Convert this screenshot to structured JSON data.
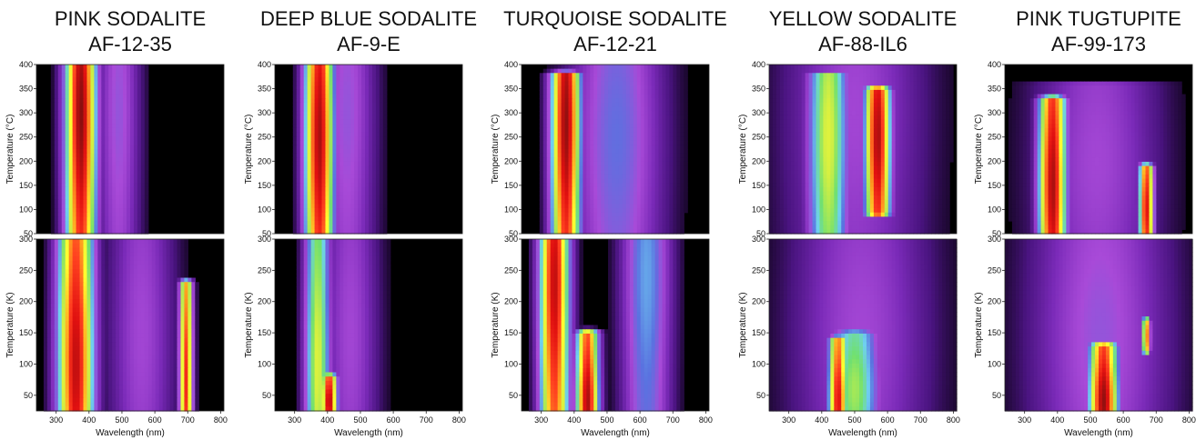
{
  "colors": {
    "background": "#000000",
    "colormap": [
      "#000000",
      "#4a1480",
      "#7a2ab8",
      "#a84ad8",
      "#5a72e0",
      "#6fd0f0",
      "#70e070",
      "#d8f040",
      "#ffff30",
      "#ffa020",
      "#ff4020",
      "#e01010",
      "#901010",
      "#3a0404"
    ]
  },
  "chart_data": [
    {
      "type": "heatmap",
      "title_line1": "PINK SODALITE",
      "title_line2": "AF-12-35",
      "xlabel": "Wavelength (nm)",
      "xticks": [
        "300",
        "400",
        "500",
        "600",
        "700",
        "800"
      ],
      "xlim": [
        240,
        810
      ],
      "top": {
        "ylabel": "Temperature (°C)",
        "ylim": [
          50,
          400
        ],
        "yticks": [
          "50",
          "100",
          "150",
          "200",
          "250",
          "300",
          "350",
          "400"
        ],
        "bands": [
          {
            "center_nm": 375,
            "width_nm": 95,
            "peak": 0.93,
            "t_from": 50,
            "t_to": 400,
            "t_peak": 300
          },
          {
            "center_nm": 490,
            "width_nm": 130,
            "peak": 0.25,
            "t_from": 50,
            "t_to": 400,
            "t_peak": 300
          }
        ]
      },
      "bottom": {
        "ylabel": "Temperature (K)",
        "ylim": [
          25,
          300
        ],
        "yticks": [
          "50",
          "100",
          "150",
          "200",
          "250",
          "300"
        ],
        "bands": [
          {
            "center_nm": 360,
            "width_nm": 110,
            "peak": 0.88,
            "t_from": 25,
            "t_to": 300,
            "t_peak": 100
          },
          {
            "center_nm": 695,
            "width_nm": 40,
            "peak": 0.8,
            "t_from": 25,
            "t_to": 230,
            "t_peak": 70
          },
          {
            "center_nm": 560,
            "width_nm": 200,
            "peak": 0.22,
            "t_from": 25,
            "t_to": 300,
            "t_peak": 150
          }
        ]
      }
    },
    {
      "type": "heatmap",
      "title_line1": "DEEP BLUE SODALITE",
      "title_line2": "AF-9-E",
      "xlabel": "Wavelength (nm)",
      "xticks": [
        "300",
        "400",
        "500",
        "600",
        "700",
        "800"
      ],
      "xlim": [
        240,
        810
      ],
      "top": {
        "ylabel": "Temperature (°C)",
        "ylim": [
          50,
          400
        ],
        "yticks": [
          "50",
          "100",
          "150",
          "200",
          "250",
          "300",
          "350",
          "400"
        ],
        "bands": [
          {
            "center_nm": 375,
            "width_nm": 90,
            "peak": 0.9,
            "t_from": 50,
            "t_to": 400,
            "t_peak": 250
          },
          {
            "center_nm": 460,
            "width_nm": 170,
            "peak": 0.25,
            "t_from": 50,
            "t_to": 400,
            "t_peak": 300
          }
        ]
      },
      "bottom": {
        "ylabel": "Temperature (K)",
        "ylim": [
          25,
          300
        ],
        "yticks": [
          "50",
          "100",
          "150",
          "200",
          "250",
          "300"
        ],
        "bands": [
          {
            "center_nm": 370,
            "width_nm": 80,
            "peak": 0.55,
            "t_from": 25,
            "t_to": 300,
            "t_peak": 100
          },
          {
            "center_nm": 405,
            "width_nm": 50,
            "peak": 0.9,
            "t_from": 25,
            "t_to": 80,
            "t_peak": 40
          },
          {
            "center_nm": 470,
            "width_nm": 170,
            "peak": 0.22,
            "t_from": 25,
            "t_to": 300,
            "t_peak": 150
          }
        ]
      }
    },
    {
      "type": "heatmap",
      "title_line1": "TURQUOISE SODALITE",
      "title_line2": "AF-12-21",
      "xlabel": "Wavelength (nm)",
      "xticks": [
        "300",
        "400",
        "500",
        "600",
        "700",
        "800"
      ],
      "xlim": [
        240,
        810
      ],
      "top": {
        "ylabel": "Temperature (°C)",
        "ylim": [
          50,
          400
        ],
        "yticks": [
          "50",
          "100",
          "150",
          "200",
          "250",
          "300",
          "350",
          "400"
        ],
        "bands": [
          {
            "center_nm": 375,
            "width_nm": 90,
            "peak": 0.92,
            "t_from": 50,
            "t_to": 380,
            "t_peak": 280
          },
          {
            "center_nm": 530,
            "width_nm": 280,
            "peak": 0.3,
            "t_from": 50,
            "t_to": 400,
            "t_peak": 250
          }
        ]
      },
      "bottom": {
        "ylabel": "Temperature (K)",
        "ylim": [
          25,
          300
        ],
        "yticks": [
          "50",
          "100",
          "150",
          "200",
          "250",
          "300"
        ],
        "bands": [
          {
            "center_nm": 340,
            "width_nm": 90,
            "peak": 0.88,
            "t_from": 25,
            "t_to": 300,
            "t_peak": 230
          },
          {
            "center_nm": 440,
            "width_nm": 70,
            "peak": 0.9,
            "t_from": 25,
            "t_to": 150,
            "t_peak": 40
          },
          {
            "center_nm": 620,
            "width_nm": 150,
            "peak": 0.35,
            "t_from": 25,
            "t_to": 300,
            "t_peak": 240
          }
        ]
      }
    },
    {
      "type": "heatmap",
      "title_line1": "YELLOW SODALITE",
      "title_line2": "AF-88-IL6",
      "xlabel": "Wavelength (nm)",
      "xticks": [
        "300",
        "400",
        "500",
        "600",
        "700",
        "800"
      ],
      "xlim": [
        240,
        810
      ],
      "top": {
        "ylabel": "Temperature (°C)",
        "ylim": [
          50,
          400
        ],
        "yticks": [
          "50",
          "100",
          "150",
          "200",
          "250",
          "300",
          "350",
          "400"
        ],
        "bands": [
          {
            "center_nm": 420,
            "width_nm": 130,
            "peak": 0.55,
            "t_from": 50,
            "t_to": 380,
            "t_peak": 250
          },
          {
            "center_nm": 570,
            "width_nm": 80,
            "peak": 0.9,
            "t_from": 90,
            "t_to": 350,
            "t_peak": 250
          },
          {
            "center_nm": 500,
            "width_nm": 420,
            "peak": 0.22,
            "t_from": 50,
            "t_to": 400,
            "t_peak": 300
          }
        ]
      },
      "bottom": {
        "ylabel": "Temperature (K)",
        "ylim": [
          25,
          300
        ],
        "yticks": [
          "50",
          "100",
          "150",
          "200",
          "250",
          "300"
        ],
        "bands": [
          {
            "center_nm": 450,
            "width_nm": 60,
            "peak": 0.85,
            "t_from": 25,
            "t_to": 140,
            "t_peak": 40
          },
          {
            "center_nm": 500,
            "width_nm": 160,
            "peak": 0.5,
            "t_from": 25,
            "t_to": 150,
            "t_peak": 60
          },
          {
            "center_nm": 520,
            "width_nm": 420,
            "peak": 0.22,
            "t_from": 25,
            "t_to": 300,
            "t_peak": 150
          }
        ]
      }
    },
    {
      "type": "heatmap",
      "title_line1": "PINK TUGTUPITE",
      "title_line2": "AF-99-173",
      "xlabel": "Wavelength (nm)",
      "xticks": [
        "300",
        "400",
        "500",
        "600",
        "700",
        "800"
      ],
      "xlim": [
        240,
        810
      ],
      "top": {
        "ylabel": "Temperature (°C)",
        "ylim": [
          50,
          400
        ],
        "yticks": [
          "50",
          "100",
          "150",
          "200",
          "250",
          "300",
          "350",
          "400"
        ],
        "bands": [
          {
            "center_nm": 385,
            "width_nm": 85,
            "peak": 0.9,
            "t_from": 50,
            "t_to": 330,
            "t_peak": 150
          },
          {
            "center_nm": 670,
            "width_nm": 45,
            "peak": 0.85,
            "t_from": 50,
            "t_to": 190,
            "t_peak": 100
          },
          {
            "center_nm": 520,
            "width_nm": 380,
            "peak": 0.22,
            "t_from": 50,
            "t_to": 360,
            "t_peak": 200
          }
        ]
      },
      "bottom": {
        "ylabel": "Temperature (K)",
        "ylim": [
          25,
          300
        ],
        "yticks": [
          "50",
          "100",
          "150",
          "200",
          "250",
          "300"
        ],
        "bands": [
          {
            "center_nm": 540,
            "width_nm": 90,
            "peak": 0.92,
            "t_from": 25,
            "t_to": 130,
            "t_peak": 40
          },
          {
            "center_nm": 670,
            "width_nm": 25,
            "peak": 0.75,
            "t_from": 120,
            "t_to": 170,
            "t_peak": 145
          },
          {
            "center_nm": 530,
            "width_nm": 420,
            "peak": 0.25,
            "t_from": 25,
            "t_to": 300,
            "t_peak": 150
          }
        ]
      }
    }
  ]
}
